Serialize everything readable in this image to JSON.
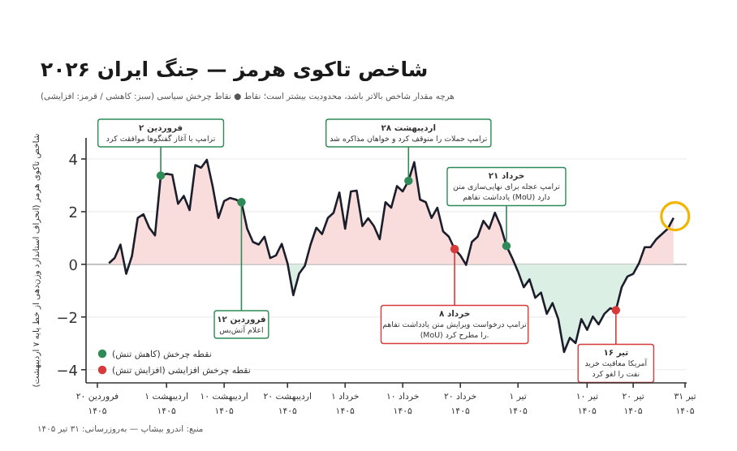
{
  "chart_data": {
    "type": "area",
    "title": "شاخص تاکوی هرمز — جنگ ایران ۲۰۲۶",
    "subtitle": "هرچه مقدار شاخص بالاتر باشد، محدودیت بیشتر است؛ نقاط ● نقاط چرخش سیاسی (سبز: کاهشی / قرمز: افزایشی)",
    "ylabel": "شاخص تاکوی هرمز (انحراف استاندارد وزن‌دهی از خط پایه ۷ اردیبهشت)",
    "categories": [
      "۲۰ فروردین\n۱۴۰۵",
      null,
      null,
      null,
      null,
      null,
      null,
      null,
      null,
      null,
      null,
      null,
      "۱ اردیبهشت\n۱۴۰۵",
      null,
      null,
      null,
      null,
      null,
      null,
      null,
      null,
      null,
      "۱۰ اردیبهشت\n۱۴۰۵",
      null,
      null,
      null,
      null,
      null,
      null,
      null,
      null,
      null,
      null,
      "۲۰ اردیبهشت\n۱۴۰۵",
      null,
      null,
      null,
      null,
      null,
      null,
      null,
      null,
      null,
      "۱ خرداد\n۱۴۰۵",
      null,
      null,
      null,
      null,
      null,
      null,
      null,
      null,
      null,
      "۱۰ خرداد\n۱۴۰۵",
      null,
      null,
      null,
      null,
      null,
      null,
      null,
      null,
      null,
      "۲۰ خرداد\n۱۴۰۵",
      null,
      null,
      null,
      null,
      null,
      null,
      null,
      null,
      null,
      "۱ تیر\n۱۴۰۵",
      null,
      null,
      null,
      null,
      null,
      null,
      null,
      null,
      null,
      null,
      null,
      "۱۰ تیر\n۱۴۰۵",
      null,
      null,
      null,
      null,
      null,
      null,
      null,
      "۲۰ تیر\n۱۴۰۵",
      null,
      null,
      null,
      null,
      null,
      null,
      null,
      null,
      "۳۱ تیر\n۱۴۰۵"
    ],
    "series": [
      {
        "color": "#1c1f2b",
        "values": [
          null,
          null,
          0.04,
          0.24,
          0.75,
          -0.36,
          0.32,
          1.76,
          1.9,
          1.39,
          1.1,
          3.37,
          3.44,
          3.4,
          2.3,
          2.6,
          2.06,
          3.77,
          3.67,
          3.97,
          2.97,
          1.76,
          2.4,
          2.52,
          2.46,
          2.36,
          1.35,
          0.85,
          0.75,
          1.05,
          0.24,
          0.34,
          0.78,
          0.04,
          -1.17,
          -0.36,
          -0.06,
          0.75,
          1.39,
          1.15,
          1.76,
          1.96,
          2.73,
          1.35,
          2.77,
          2.8,
          1.45,
          1.75,
          1.45,
          0.95,
          2.36,
          2.15,
          2.97,
          2.77,
          3.17,
          3.88,
          2.46,
          2.36,
          1.76,
          2.15,
          1.25,
          1.05,
          0.58,
          0.34,
          -0.02,
          0.85,
          1.05,
          1.65,
          1.35,
          1.96,
          1.45,
          0.7,
          0.24,
          -0.27,
          -0.87,
          -0.57,
          -1.27,
          -1.07,
          -1.88,
          -1.47,
          -2.08,
          -3.33,
          -2.79,
          -2.99,
          -2.08,
          -2.49,
          -1.98,
          -2.28,
          -1.88,
          -1.67,
          -1.74,
          -0.87,
          -0.46,
          -0.36,
          0.04,
          0.65,
          0.65,
          0.95,
          1.15,
          1.35,
          1.76,
          null,
          null
        ]
      },
      {
        "type": "scatter",
        "name": "نقطه چرخش (کاهش تنش)",
        "color": "#2e8b57",
        "values": [
          null,
          null,
          null,
          null,
          null,
          null,
          null,
          null,
          null,
          null,
          null,
          3.37,
          null,
          null,
          null,
          null,
          null,
          null,
          null,
          null,
          null,
          null,
          null,
          null,
          null,
          2.36,
          null,
          null,
          null,
          null,
          null,
          null,
          null,
          null,
          null,
          null,
          null,
          null,
          null,
          null,
          null,
          null,
          null,
          null,
          null,
          null,
          null,
          null,
          null,
          null,
          null,
          null,
          null,
          null,
          3.17,
          null,
          null,
          null,
          null,
          null,
          null,
          null,
          null,
          null,
          null,
          null,
          null,
          null,
          null,
          null,
          null,
          0.7,
          null,
          null,
          null,
          null,
          null,
          null,
          null,
          null,
          null,
          null,
          null,
          null,
          null,
          null,
          null,
          null,
          null,
          null,
          null,
          null,
          null,
          null,
          null,
          null,
          null,
          null,
          null,
          null,
          null,
          null,
          null
        ]
      },
      {
        "type": "scatter",
        "name": "نقطه چرخش افزایشی (افزایش تنش)",
        "color": "#d63a3a",
        "values": [
          null,
          null,
          null,
          null,
          null,
          null,
          null,
          null,
          null,
          null,
          null,
          null,
          null,
          null,
          null,
          null,
          null,
          null,
          null,
          null,
          null,
          null,
          null,
          null,
          null,
          null,
          null,
          null,
          null,
          null,
          null,
          null,
          null,
          null,
          null,
          null,
          null,
          null,
          null,
          null,
          null,
          null,
          null,
          null,
          null,
          null,
          null,
          null,
          null,
          null,
          null,
          null,
          null,
          null,
          null,
          null,
          null,
          null,
          null,
          null,
          null,
          null,
          0.58,
          null,
          null,
          null,
          null,
          null,
          null,
          null,
          null,
          null,
          null,
          null,
          null,
          null,
          null,
          null,
          null,
          null,
          null,
          null,
          null,
          null,
          null,
          null,
          null,
          null,
          null,
          null,
          -1.74,
          null,
          null,
          null,
          null,
          null,
          null,
          null,
          null,
          null,
          null,
          null,
          null
        ]
      }
    ],
    "colors": [
      "#f9dcdc",
      "#dcefe4"
    ],
    "ylim": [
      -4.5,
      4.8
    ],
    "yticks": [
      -4,
      -2,
      0,
      2,
      4
    ],
    "grid": "y",
    "ref_lines": [
      {
        "axis": "y",
        "value": 0,
        "color": "#bbbbbb"
      }
    ],
    "legend": "bottom left",
    "annotations": [
      {
        "text": "۲ فروردین\nترامپ با آغاز گفتگوها موافقت کرد",
        "y": 3.37
      },
      {
        "text": "۱۲ فروردین\nاعلام آتش‌بس",
        "y": 2.36
      },
      {
        "text": "۲۸ اردیبهشت\nترامپ حملات را متوقف کرد و خواهان مذاکره شد",
        "y": 3.17
      },
      {
        "text": "۲۱ خرداد\nترامپ عجله برای نهایی‌سازی متن\nیادداشت تفاهم (MoU) دارد",
        "y": 0.7
      },
      {
        "text": "۸ خرداد\nترامپ درخواست ویرایش متن یادداشت تفاهم\n(MoU) را مطرح کرد.",
        "y": 0.58
      },
      {
        "text": "۱۶ تیر\nآمریکا معافیت خرید نفت را لغو کرد",
        "y": -1.74
      },
      "منبع: اندرو بیشاپ — به‌روزرسانی: ۳۱ تیر ۱۴۰۵"
    ]
  }
}
